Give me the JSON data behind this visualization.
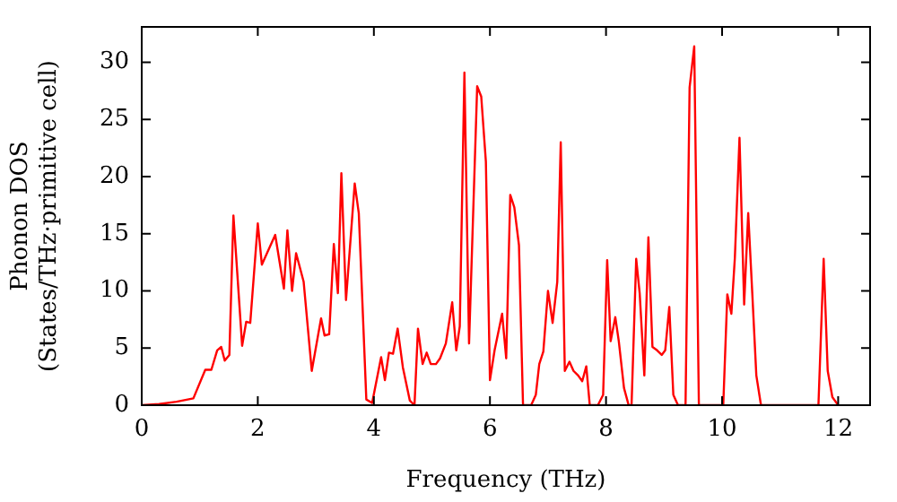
{
  "chart_data": {
    "type": "line",
    "xlabel": "Frequency (THz)",
    "ylabel": "Phonon DOS\n(States/THz·primitive cell)",
    "x": [
      0,
      0.3,
      0.6,
      0.89,
      1.095,
      1.2,
      1.3,
      1.37,
      1.43,
      1.51,
      1.58,
      1.73,
      1.8,
      1.87,
      2.0,
      2.07,
      2.3,
      2.45,
      2.51,
      2.59,
      2.66,
      2.79,
      2.93,
      3.09,
      3.15,
      3.23,
      3.31,
      3.38,
      3.44,
      3.52,
      3.67,
      3.74,
      3.87,
      3.97,
      4.125,
      4.19,
      4.26,
      4.33,
      4.41,
      4.5,
      4.62,
      4.7,
      4.76,
      4.84,
      4.91,
      4.98,
      5.07,
      5.14,
      5.24,
      5.35,
      5.42,
      5.48,
      5.56,
      5.64,
      5.78,
      5.85,
      5.93,
      6.0,
      6.08,
      6.21,
      6.28,
      6.35,
      6.42,
      6.5,
      6.57,
      6.71,
      6.79,
      6.85,
      6.92,
      7.0,
      7.08,
      7.16,
      7.22,
      7.29,
      7.37,
      7.44,
      7.52,
      7.59,
      7.66,
      7.72,
      7.86,
      7.95,
      8.02,
      8.08,
      8.16,
      8.22,
      8.31,
      8.39,
      8.44,
      8.52,
      8.58,
      8.66,
      8.73,
      8.8,
      8.88,
      8.96,
      9.02,
      9.09,
      9.16,
      9.24,
      9.37,
      9.44,
      9.52,
      9.6,
      10.02,
      10.09,
      10.16,
      10.22,
      10.3,
      10.38,
      10.45,
      10.52,
      10.59,
      10.67,
      11.66,
      11.75,
      11.82,
      11.9,
      12.0
    ],
    "series": [
      {
        "color": "#ff0000",
        "values": [
          0,
          0.1,
          0.3,
          0.6,
          3.1,
          3.1,
          4.8,
          5.1,
          3.9,
          4.4,
          16.6,
          5.2,
          7.3,
          7.2,
          15.9,
          12.3,
          14.9,
          10.2,
          15.3,
          10,
          13.3,
          10.8,
          3,
          7.6,
          6.1,
          6.2,
          14.1,
          9.8,
          20.3,
          9.2,
          19.4,
          16.8,
          0.5,
          0.2,
          4.2,
          2.2,
          4.6,
          4.5,
          6.7,
          3.3,
          0.4,
          0,
          6.7,
          3.6,
          4.6,
          3.6,
          3.6,
          4.1,
          5.4,
          9,
          4.8,
          6.9,
          29.1,
          5.4,
          27.9,
          27,
          21.3,
          2.2,
          4.8,
          8,
          4.1,
          18.4,
          17.3,
          14,
          0,
          0,
          0.9,
          3.6,
          4.7,
          10,
          7.2,
          10.8,
          23,
          3,
          3.8,
          3,
          2.6,
          2.1,
          3.4,
          0,
          0,
          0.9,
          12.7,
          5.6,
          7.7,
          5.6,
          1.5,
          0,
          0,
          12.8,
          9.8,
          2.6,
          14.7,
          5.1,
          4.8,
          4.4,
          4.8,
          8.6,
          0.9,
          0,
          0,
          27.8,
          31.4,
          0,
          0,
          9.7,
          8,
          12.9,
          23.4,
          8.8,
          16.8,
          9.8,
          2.6,
          0,
          0,
          12.8,
          3,
          0.7,
          0
        ]
      }
    ],
    "xlim": [
      0,
      12.55
    ],
    "ylim": [
      0,
      33.1
    ],
    "xticks": [
      0,
      2,
      4,
      6,
      8,
      10,
      12
    ],
    "yticks": [
      0,
      5,
      10,
      15,
      20,
      25,
      30
    ],
    "grid": false,
    "legend": false,
    "marker": "none",
    "line_style": "solid"
  }
}
